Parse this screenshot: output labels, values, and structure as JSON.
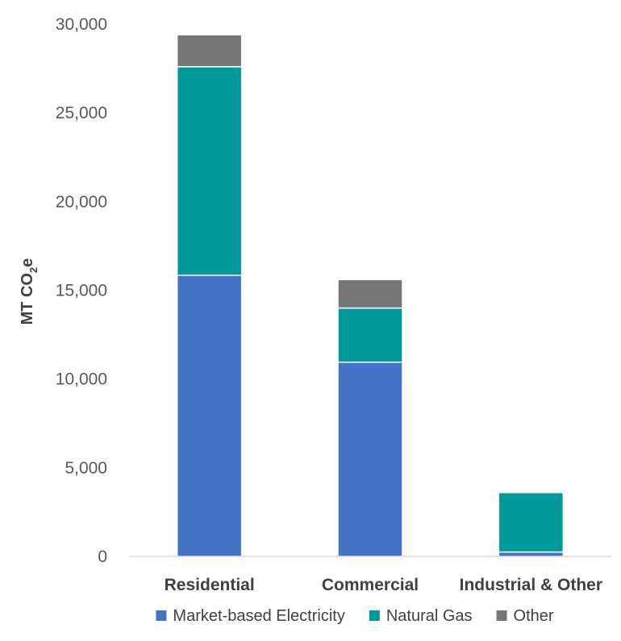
{
  "chart_data": {
    "type": "bar",
    "stacked": true,
    "categories": [
      "Residential",
      "Commercial",
      "Industrial & Other"
    ],
    "series": [
      {
        "name": "Market-based Electricity",
        "color": "#4472C4",
        "values": [
          15850,
          10950,
          250
        ]
      },
      {
        "name": "Natural Gas",
        "color": "#009999",
        "values": [
          11750,
          3050,
          3350
        ]
      },
      {
        "name": "Other",
        "color": "#767676",
        "values": [
          1800,
          1600,
          0
        ]
      }
    ],
    "ylabel_main": "MT CO",
    "ylabel_sub": "2",
    "ylabel_tail": "e",
    "ylim": [
      0,
      30000
    ],
    "yticks": [
      0,
      5000,
      10000,
      15000,
      20000,
      25000,
      30000
    ],
    "ytick_labels": [
      "0",
      "5,000",
      "10,000",
      "15,000",
      "20,000",
      "25,000",
      "30,000"
    ],
    "grid": false,
    "legend_position": "bottom"
  }
}
